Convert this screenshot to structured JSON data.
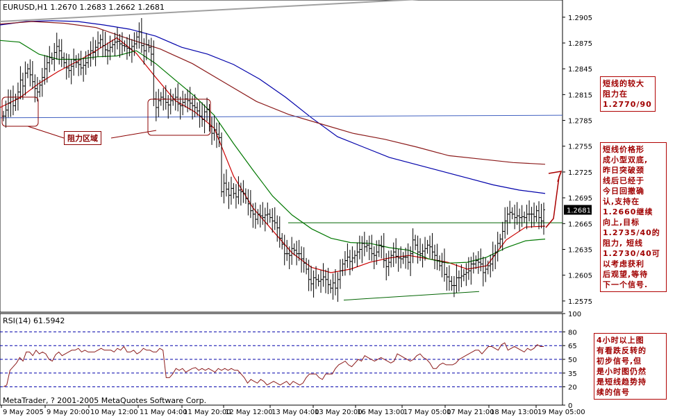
{
  "colors": {
    "bg": "#ffffff",
    "axis": "#000000",
    "bar": "#000000",
    "ma_red": "#cc0000",
    "ma_green": "#007700",
    "ma_blue": "#0000aa",
    "ma_brown": "#8b1a1a",
    "grey_line": "#a0a0a0",
    "support": "#006400",
    "resistance_blue": "#4060c0",
    "rsi": "#8b1a1a",
    "rsi_grid": "#0000aa",
    "annotation": "#a00000"
  },
  "chart_data": [
    {
      "type": "line",
      "title": "EURUSD,H1  1.2670 1.2683 1.2662 1.2681",
      "current_price_label": "1.2681",
      "ylim": [
        1.2562,
        1.2925
      ],
      "yticks": [
        1.2905,
        1.2875,
        1.2845,
        1.2815,
        1.2785,
        1.2755,
        1.2725,
        1.2695,
        1.2665,
        1.2635,
        1.2605,
        1.2575
      ],
      "ytick_labels": [
        "1.2905",
        "1.2875",
        "1.2845",
        "1.2815",
        "1.2785",
        "1.2755",
        "1.2725",
        "1.2695",
        "1.2665",
        "1.2635",
        "1.2605",
        "1.2575"
      ],
      "xtick_labels": [
        "9 May 2005",
        "9 May 20:00",
        "10 May 12:00",
        "11 May 04:00",
        "11 May 20:00",
        "12 May 12:00",
        "13 May 04:00",
        "13 May 20:00",
        "16 May 13:00",
        "17 May 05:00",
        "17 May 21:00",
        "18 May 13:00",
        "19 May 05:00"
      ],
      "price_closes": [
        1.279,
        1.2797,
        1.2805,
        1.2812,
        1.2802,
        1.281,
        1.2818,
        1.2832,
        1.2825,
        1.284,
        1.2845,
        1.2838,
        1.283,
        1.2822,
        1.2818,
        1.2826,
        1.2835,
        1.2845,
        1.2852,
        1.2858,
        1.2856,
        1.2864,
        1.2871,
        1.2866,
        1.2858,
        1.2852,
        1.2846,
        1.2843,
        1.2848,
        1.2855,
        1.2852,
        1.285,
        1.2846,
        1.2849,
        1.2852,
        1.2861,
        1.2866,
        1.2864,
        1.287,
        1.2875,
        1.2879,
        1.2872,
        1.2867,
        1.2866,
        1.287,
        1.2873,
        1.2876,
        1.2877,
        1.2874,
        1.2872,
        1.2871,
        1.2869,
        1.2868,
        1.2871,
        1.2874,
        1.2882,
        1.2888,
        1.2872,
        1.2866,
        1.2873,
        1.287,
        1.2862,
        1.281,
        1.28,
        1.2808,
        1.2812,
        1.281,
        1.2806,
        1.2803,
        1.2808,
        1.281,
        1.2812,
        1.2804,
        1.2802,
        1.2806,
        1.281,
        1.2808,
        1.2805,
        1.2802,
        1.28,
        1.2796,
        1.279,
        1.2786,
        1.2795,
        1.2798,
        1.2778,
        1.277,
        1.2774,
        1.2769,
        1.2765,
        1.2702,
        1.2712,
        1.2705,
        1.2698,
        1.2706,
        1.27,
        1.2696,
        1.2704,
        1.2702,
        1.27,
        1.2694,
        1.2688,
        1.268,
        1.2676,
        1.267,
        1.2676,
        1.2674,
        1.2672,
        1.2675,
        1.2676,
        1.2672,
        1.2668,
        1.2666,
        1.266,
        1.2648,
        1.2641,
        1.263,
        1.263,
        1.2628,
        1.2636,
        1.2634,
        1.263,
        1.263,
        1.2624,
        1.2619,
        1.2612,
        1.26,
        1.2595,
        1.2602,
        1.26,
        1.2598,
        1.26,
        1.2603,
        1.26,
        1.2594,
        1.259,
        1.2596,
        1.259,
        1.26,
        1.261,
        1.2618,
        1.2622,
        1.2626,
        1.2621,
        1.2625,
        1.2628,
        1.2632,
        1.2635,
        1.2642,
        1.2638,
        1.264,
        1.2636,
        1.263,
        1.2628,
        1.2632,
        1.264,
        1.2638,
        1.2622,
        1.2615,
        1.262,
        1.2628,
        1.2632,
        1.2627,
        1.2625,
        1.2624,
        1.2626,
        1.2626,
        1.262,
        1.263,
        1.2646,
        1.264,
        1.2632,
        1.263,
        1.2633,
        1.2636,
        1.264,
        1.2638,
        1.2632,
        1.2628,
        1.2622,
        1.2616,
        1.262,
        1.2606,
        1.2603,
        1.2598,
        1.2593,
        1.2593,
        1.2602,
        1.2602,
        1.2604,
        1.2606,
        1.2608,
        1.261,
        1.2618,
        1.2618,
        1.2622,
        1.262,
        1.2618,
        1.2608,
        1.2612,
        1.2616,
        1.2618,
        1.2628,
        1.2632,
        1.2642,
        1.2647,
        1.2656,
        1.2668,
        1.2676,
        1.2678,
        1.2676,
        1.2672,
        1.2674,
        1.2672,
        1.2673,
        1.2672,
        1.2676,
        1.2676,
        1.2676,
        1.2673,
        1.268,
        1.2672,
        1.2668,
        1.2681
      ],
      "series": [
        {
          "key": "ma_red",
          "values": [
            1.28,
            1.2811,
            1.2828,
            1.2842,
            1.2854,
            1.2867,
            1.2881,
            1.2863,
            1.2835,
            1.2808,
            1.2795,
            1.2776,
            1.272,
            1.2683,
            1.2657,
            1.2631,
            1.2614,
            1.2608,
            1.2612,
            1.262,
            1.2625,
            1.2628,
            1.2624,
            1.262,
            1.2612,
            1.2616,
            1.2646,
            1.2661,
            1.2662
          ]
        },
        {
          "key": "ma_green",
          "values": [
            1.2878,
            1.2876,
            1.2862,
            1.2856,
            1.2856,
            1.2859,
            1.286,
            1.2866,
            1.2851,
            1.2832,
            1.2813,
            1.2791,
            1.2758,
            1.2727,
            1.2697,
            1.2675,
            1.2659,
            1.2648,
            1.2643,
            1.2642,
            1.2637,
            1.2634,
            1.2624,
            1.2619,
            1.262,
            1.2626,
            1.2637,
            1.2645,
            1.2647
          ]
        },
        {
          "key": "ma_blue",
          "values": [
            1.2896,
            1.29,
            1.2901,
            1.29,
            1.2896,
            1.2891,
            1.2883,
            1.287,
            1.2862,
            1.285,
            1.2833,
            1.2812,
            1.2788,
            1.2766,
            1.2754,
            1.2742,
            1.2734,
            1.2726,
            1.2718,
            1.271,
            1.2704,
            1.27
          ]
        },
        {
          "key": "ma_brown",
          "values": [
            1.2897,
            1.29,
            1.2898,
            1.2893,
            1.288,
            1.2868,
            1.2851,
            1.2829,
            1.2807,
            1.2792,
            1.2781,
            1.277,
            1.2763,
            1.2754,
            1.2744,
            1.274,
            1.2736,
            1.2734
          ]
        },
        {
          "key": "grey_line",
          "values": [
            1.29,
            1.2934
          ]
        },
        {
          "key": "resistance_blue",
          "values": [
            1.2788,
            1.2791
          ]
        },
        {
          "key": "support",
          "values": [
            1.2576,
            1.2586
          ]
        },
        {
          "key": "neckline",
          "values": [
            1.2666,
            1.2666
          ]
        }
      ]
    },
    {
      "type": "line",
      "title": "RSI(14) 61.5942",
      "ylim": [
        0,
        100
      ],
      "yticks": [
        100,
        80,
        65,
        50,
        35,
        20,
        0
      ],
      "ytick_labels": [
        "100",
        "80",
        "65",
        "50",
        "35",
        "20",
        "0"
      ],
      "levels": [
        80,
        65,
        50,
        35,
        20
      ],
      "series": [
        {
          "name": "RSI(14)",
          "values": [
            20,
            22,
            38,
            42,
            46,
            52,
            48,
            58,
            58,
            54,
            60,
            56,
            58,
            56,
            50,
            48,
            55,
            58,
            54,
            56,
            58,
            60,
            60,
            62,
            58,
            60,
            58,
            58,
            58,
            60,
            62,
            60,
            60,
            60,
            58,
            62,
            60,
            64,
            58,
            58,
            60,
            56,
            58,
            62,
            60,
            60,
            58,
            58,
            62,
            60,
            30,
            30,
            34,
            40,
            38,
            40,
            36,
            38,
            40,
            41,
            38,
            40,
            38,
            40,
            38,
            36,
            40,
            38,
            40,
            38,
            40,
            38,
            38,
            34,
            30,
            24,
            28,
            26,
            24,
            28,
            26,
            22,
            24,
            26,
            24,
            22,
            24,
            26,
            22,
            26,
            24,
            22,
            24,
            30,
            34,
            34,
            34,
            30,
            28,
            34,
            34,
            34,
            40,
            44,
            46,
            48,
            44,
            42,
            46,
            50,
            48,
            54,
            52,
            50,
            48,
            50,
            52,
            50,
            48,
            46,
            48,
            56,
            54,
            52,
            50,
            48,
            50,
            54,
            56,
            52,
            50,
            46,
            40,
            40,
            44,
            46,
            44,
            44,
            44,
            46,
            50,
            52,
            54,
            56,
            58,
            60,
            60,
            56,
            60,
            64,
            64,
            62,
            60,
            66,
            68,
            60,
            62,
            64,
            62,
            60,
            58,
            62,
            60,
            62,
            66,
            64,
            64
          ]
        }
      ]
    }
  ],
  "watermark": "MetaTrader, ? 2001-2005 MetaQuotes Software Corp.",
  "annotations": {
    "zone_label": "阻力区域",
    "box1": "短线的较大\n阻力在\n1.2770/90",
    "box2": "短线价格形\n成小型双底,\n昨日突破颈\n线后已经于\n今日回撤确\n认,支持在\n1.2660继续\n向上,目标\n1.2735/40的\n阻力, 短线\n1.2730/40可\n以考虑获利\n后观望,等待\n下一个信号.",
    "box3": "4小时以上图\n有看跌反转的\n初步信号,但\n是小时图仍然\n是短线趋势持\n续的信号"
  }
}
